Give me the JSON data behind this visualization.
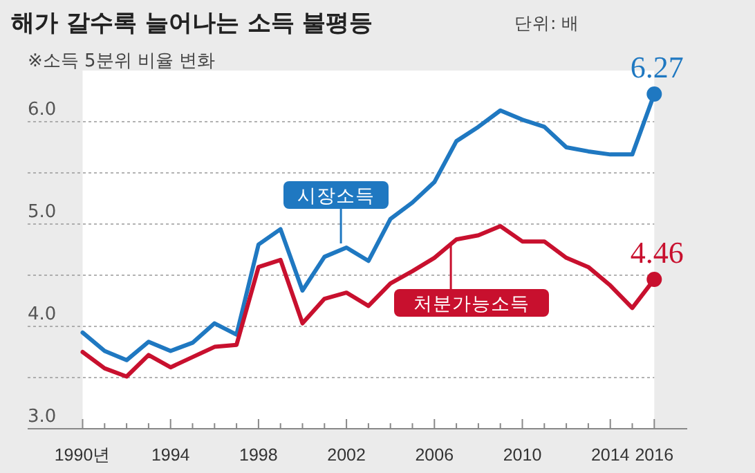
{
  "chart_data": {
    "type": "line",
    "title": "해가 갈수록 늘어나는 소득 불평등",
    "subtitle": "단위: 배",
    "annotations": [
      "※소득 5분위 비율 변화"
    ],
    "x": [
      1990,
      1991,
      1992,
      1993,
      1994,
      1995,
      1996,
      1997,
      1998,
      1999,
      2000,
      2001,
      2002,
      2003,
      2004,
      2005,
      2006,
      2007,
      2008,
      2009,
      2010,
      2011,
      2012,
      2013,
      2014,
      2015,
      2016
    ],
    "series": [
      {
        "name": "시장소득",
        "color": "#1f78c1",
        "values": [
          3.94,
          3.76,
          3.67,
          3.85,
          3.76,
          3.84,
          4.03,
          3.92,
          4.8,
          4.95,
          4.35,
          4.68,
          4.77,
          4.64,
          5.05,
          5.21,
          5.41,
          5.81,
          5.95,
          6.11,
          6.02,
          5.95,
          5.75,
          5.71,
          5.68,
          5.68,
          6.27
        ],
        "value_labels": [
          null,
          null,
          null,
          null,
          null,
          null,
          null,
          null,
          null,
          null,
          null,
          null,
          null,
          null,
          null,
          null,
          null,
          null,
          null,
          null,
          null,
          null,
          null,
          null,
          null,
          null,
          "6.27"
        ]
      },
      {
        "name": "처분가능소득",
        "color": "#c8102e",
        "values": [
          3.75,
          3.59,
          3.51,
          3.72,
          3.6,
          3.7,
          3.8,
          3.82,
          4.58,
          4.65,
          4.03,
          4.27,
          4.33,
          4.2,
          4.42,
          4.54,
          4.67,
          4.85,
          4.89,
          4.98,
          4.83,
          4.83,
          4.67,
          4.58,
          4.4,
          4.18,
          4.46
        ],
        "value_labels": [
          null,
          null,
          null,
          null,
          null,
          null,
          null,
          null,
          null,
          null,
          null,
          null,
          null,
          null,
          null,
          null,
          null,
          null,
          null,
          null,
          null,
          null,
          null,
          null,
          null,
          null,
          "4.46"
        ]
      }
    ],
    "xlim": [
      1987.5,
      2017.5
    ],
    "xticks": [
      {
        "value": 1990,
        "label": "1990년"
      },
      {
        "value": 1991,
        "label": null
      },
      {
        "value": 1992,
        "label": null
      },
      {
        "value": 1993,
        "label": null
      },
      1994,
      {
        "value": 1995,
        "label": null
      },
      {
        "value": 1996,
        "label": null
      },
      {
        "value": 1997,
        "label": null
      },
      1998,
      {
        "value": 1999,
        "label": null
      },
      {
        "value": 2000,
        "label": null
      },
      {
        "value": 2001,
        "label": null
      },
      2002,
      {
        "value": 2003,
        "label": null
      },
      {
        "value": 2004,
        "label": null
      },
      {
        "value": 2005,
        "label": null
      },
      2006,
      {
        "value": 2007,
        "label": null
      },
      {
        "value": 2008,
        "label": null
      },
      {
        "value": 2009,
        "label": null
      },
      2010,
      {
        "value": 2011,
        "label": null
      },
      {
        "value": 2012,
        "label": null
      },
      {
        "value": 2013,
        "label": null
      },
      2014,
      {
        "value": 2015,
        "label": null
      },
      2016
    ],
    "ylim": [
      3.0,
      6.5
    ],
    "yticks": [
      {
        "value": 3.0,
        "label": "3.0"
      },
      {
        "value": 3.5,
        "label": null
      },
      {
        "value": 4.0,
        "label": "4.0"
      },
      {
        "value": 4.5,
        "label": null
      },
      {
        "value": 5.0,
        "label": "5.0"
      },
      {
        "value": 5.5,
        "label": null
      },
      {
        "value": 6.0,
        "label": "6.0"
      }
    ],
    "bands": [
      {
        "axis": "x",
        "from": 1990,
        "to": 2016,
        "color": "#ffffff"
      }
    ],
    "grid": "y",
    "legend": false,
    "marker": "none",
    "line_style": "solid"
  }
}
